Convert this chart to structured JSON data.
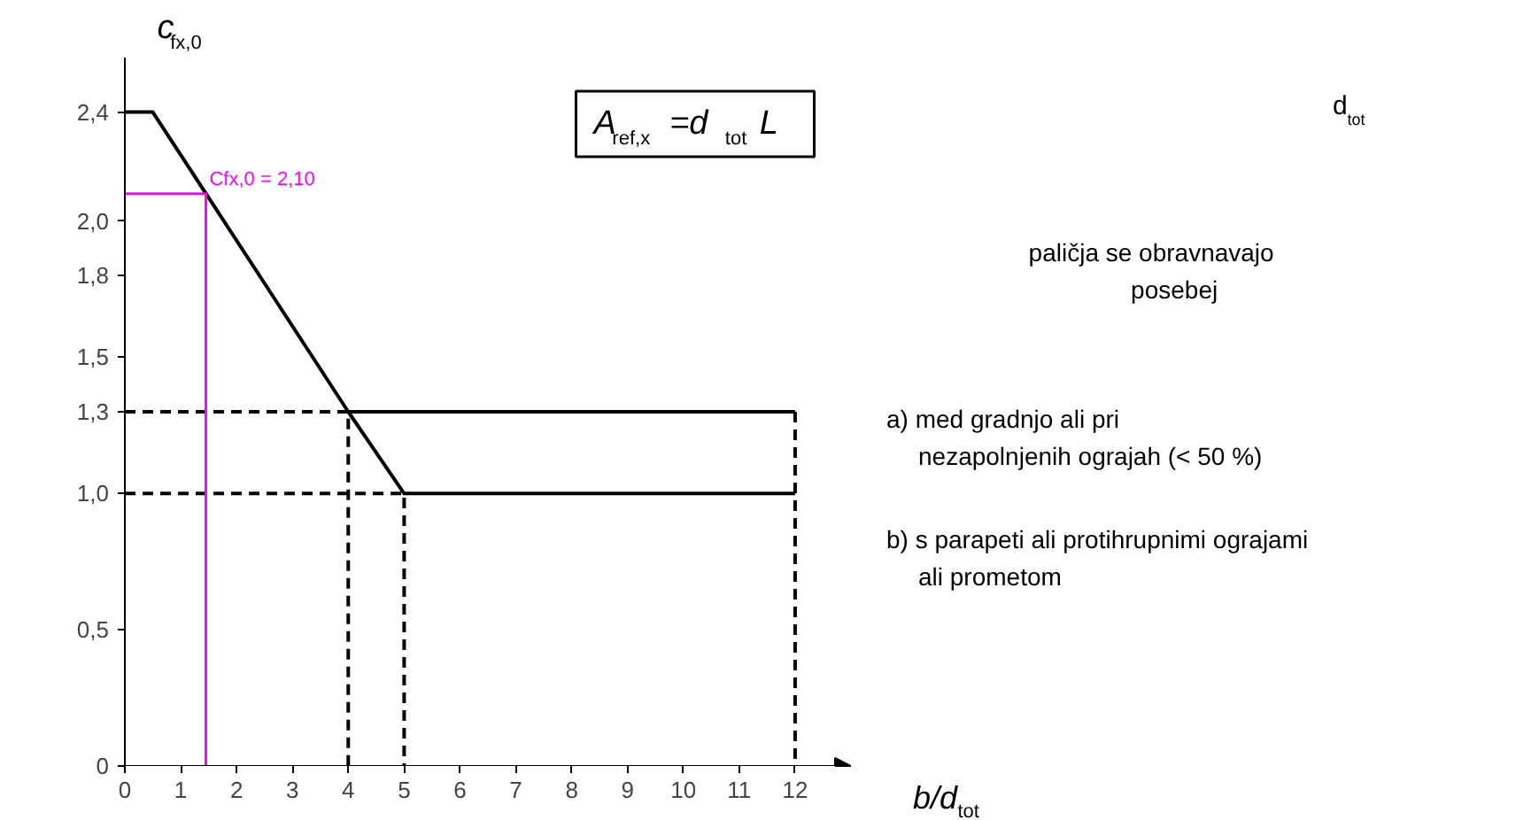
{
  "chart_data": {
    "type": "line",
    "xlabel": "b/d$_{tot}$",
    "ylabel": "c$_{fx,0}$",
    "xlim": [
      0,
      13
    ],
    "ylim": [
      0,
      2.6
    ],
    "xticks": [
      0,
      1,
      2,
      3,
      4,
      5,
      6,
      7,
      8,
      9,
      10,
      11,
      12
    ],
    "yticks": [
      0,
      {
        "value": 0.5,
        "label": "0,5"
      },
      {
        "value": 1.0,
        "label": "1,0"
      },
      {
        "value": 1.3,
        "label": "1,3"
      },
      {
        "value": 1.5,
        "label": "1,5"
      },
      {
        "value": 1.8,
        "label": "1,8"
      },
      {
        "value": 2.0,
        "label": "2,0"
      },
      {
        "value": 2.4,
        "label": "2,4"
      }
    ],
    "grid": false,
    "series": [
      {
        "color": "#000000",
        "line_style": "solid",
        "x": [
          0,
          0.5,
          4,
          12
        ],
        "values": [
          2.4,
          2.4,
          1.3,
          1.3
        ]
      },
      {
        "color": "#000000",
        "line_style": "solid",
        "x": [
          4,
          5,
          12
        ],
        "values": [
          1.3,
          1.0,
          1.0
        ]
      },
      {
        "color": "#000000",
        "line_style": "dashed",
        "x": [
          0,
          4,
          4
        ],
        "values": [
          1.3,
          1.3,
          0
        ]
      },
      {
        "color": "#000000",
        "line_style": "dashed",
        "x": [
          0,
          5,
          5
        ],
        "values": [
          1.0,
          1.0,
          0
        ]
      },
      {
        "color": "#000000",
        "line_style": "dashed",
        "x": [
          12,
          12
        ],
        "values": [
          1.3,
          0
        ]
      },
      {
        "color": "#ff00ff",
        "line_style": "solid",
        "x": [
          0,
          1.45,
          1.45
        ],
        "values": [
          2.1,
          2.1,
          0
        ]
      }
    ],
    "annotations": [
      {
        "text": "Cfx,0 = 2,10",
        "x": 1.45,
        "y": 2.1
      },
      "A$_{ref,x}$ =d$_{tot}$ L",
      "d$_{tot}$",
      "paličja se obravnavajo\nposebej",
      "a) med gradnjo ali pri\n   nezapolnjenih ograjah (< 50 %)",
      "b) s parapeti ali protihrupnimi ograjami\n   ali prometom"
    ]
  }
}
